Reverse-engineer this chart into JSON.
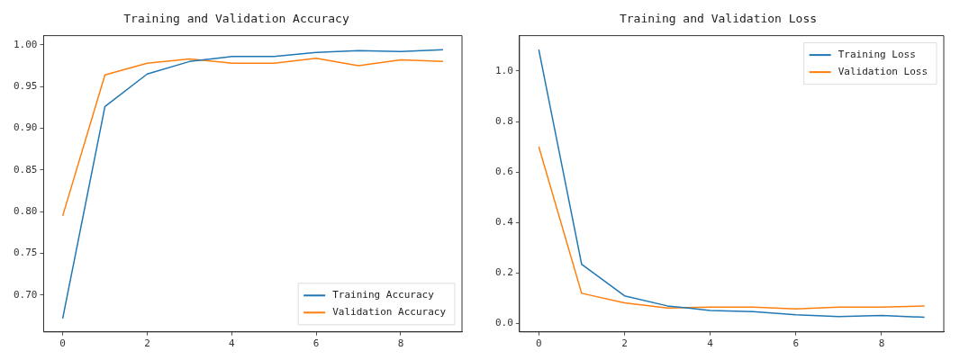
{
  "chart_data": [
    {
      "type": "line",
      "title": "Training and Validation Accuracy",
      "x": [
        0,
        1,
        2,
        3,
        4,
        5,
        6,
        7,
        8,
        9
      ],
      "series": [
        {
          "name": "Training Accuracy",
          "color": "#1f77b4",
          "values": [
            0.672,
            0.926,
            0.965,
            0.98,
            0.986,
            0.986,
            0.991,
            0.993,
            0.992,
            0.994
          ]
        },
        {
          "name": "Validation Accuracy",
          "color": "#ff7f0e",
          "values": [
            0.795,
            0.964,
            0.978,
            0.983,
            0.978,
            0.978,
            0.984,
            0.975,
            0.982,
            0.98
          ]
        }
      ],
      "xlim": [
        -0.45,
        9.45
      ],
      "xticks": [
        0,
        2,
        4,
        6,
        8
      ],
      "ylim": [
        0.656,
        1.011
      ],
      "yticks": [
        {
          "value": 0.7,
          "label": "0.70"
        },
        {
          "value": 0.75,
          "label": "0.75"
        },
        {
          "value": 0.8,
          "label": "0.80"
        },
        {
          "value": 0.85,
          "label": "0.85"
        },
        {
          "value": 0.9,
          "label": "0.90"
        },
        {
          "value": 0.95,
          "label": "0.95"
        },
        {
          "value": 1.0,
          "label": "1.00"
        }
      ],
      "grid": false,
      "legend": "bottom right",
      "marker": "none",
      "line_style": "solid"
    },
    {
      "type": "line",
      "title": "Training and Validation Loss",
      "x": [
        0,
        1,
        2,
        3,
        4,
        5,
        6,
        7,
        8,
        9
      ],
      "series": [
        {
          "name": "Training Loss",
          "color": "#1f77b4",
          "values": [
            1.085,
            0.235,
            0.11,
            0.07,
            0.052,
            0.047,
            0.035,
            0.028,
            0.032,
            0.025
          ]
        },
        {
          "name": "Validation Loss",
          "color": "#ff7f0e",
          "values": [
            0.7,
            0.12,
            0.082,
            0.062,
            0.065,
            0.065,
            0.058,
            0.065,
            0.065,
            0.07
          ]
        }
      ],
      "xlim": [
        -0.45,
        9.45
      ],
      "xticks": [
        0,
        2,
        4,
        6,
        8
      ],
      "ylim": [
        -0.033,
        1.14
      ],
      "yticks": [
        {
          "value": 0,
          "label": "0.0"
        },
        {
          "value": 0.2,
          "label": "0.2"
        },
        {
          "value": 0.4,
          "label": "0.4"
        },
        {
          "value": 0.6,
          "label": "0.6"
        },
        {
          "value": 0.8,
          "label": "0.8"
        },
        {
          "value": 1.0,
          "label": "1.0"
        }
      ],
      "grid": false,
      "legend": "top right",
      "marker": "none",
      "line_style": "solid"
    }
  ]
}
